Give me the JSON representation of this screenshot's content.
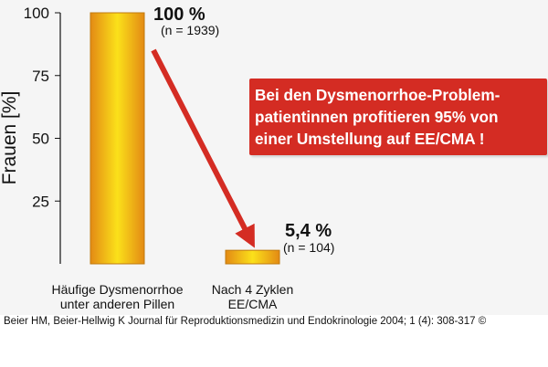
{
  "chart_data": {
    "type": "bar",
    "categories": [
      [
        "Häufige Dysmenorrhoe",
        "unter anderen Pillen"
      ],
      [
        "Nach 4 Zyklen",
        "EE/CMA"
      ]
    ],
    "values": [
      100,
      5.4
    ],
    "value_labels": [
      "100 %",
      "5,4 %"
    ],
    "n_labels": [
      "(n = 1939)",
      "(n = 104)"
    ],
    "ylabel": "Frauen [%]",
    "ylim": [
      0,
      100
    ],
    "yticks": [
      25,
      50,
      75,
      100
    ],
    "grid": false
  },
  "callout": {
    "lines": [
      "Bei den Dysmenorrhoe-Problem-",
      "patientinnen profitieren 95% von",
      "einer Umstellung auf  EE/CMA !"
    ]
  },
  "citation": "Beier HM, Beier-Hellwig K Journal für Reproduktionsmedizin und Endokrinologie 2004; 1 (4): 308-317 ©",
  "colors": {
    "bar_center": "#fbe11a",
    "bar_edge": "#e38a14",
    "bar_outline": "#c07a10",
    "arrow": "#d42c23",
    "callout_bg": "#d42c23",
    "callout_text": "#ffffff"
  }
}
